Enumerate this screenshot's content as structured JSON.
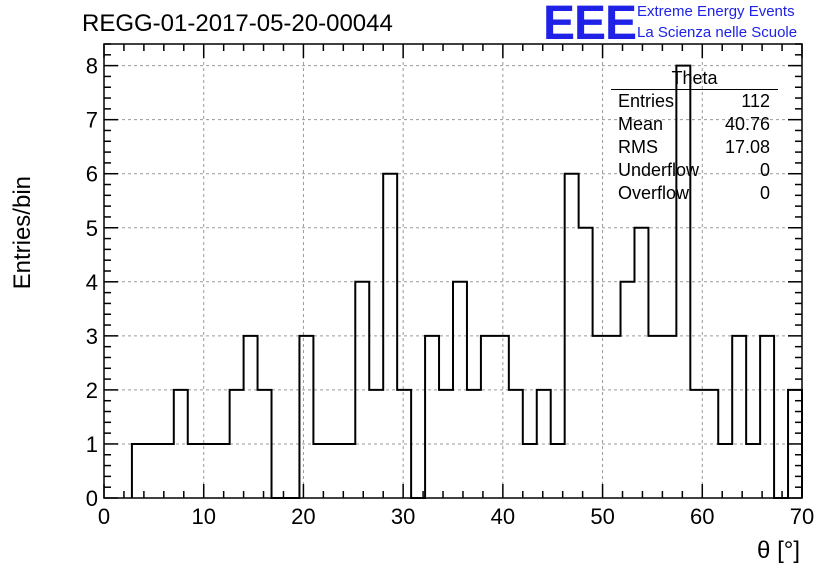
{
  "title": "REGG-01-2017-05-20-00044",
  "logo": {
    "text": "EEE",
    "line1": "Extreme Energy Events",
    "line2": "La Scienza nelle Scuole",
    "color": "#1f22e6"
  },
  "stats_box": {
    "name": "Theta",
    "rows": [
      {
        "label": "Entries",
        "value": "112"
      },
      {
        "label": "Mean",
        "value": "40.76"
      },
      {
        "label": "RMS",
        "value": "17.08"
      },
      {
        "label": "Underflow",
        "value": "0"
      },
      {
        "label": "Overflow",
        "value": "0"
      }
    ]
  },
  "chart_data": {
    "type": "bar",
    "histogram_style": "step",
    "xlabel": "θ [°]",
    "ylabel": "Entries/bin",
    "xlim": [
      0,
      70
    ],
    "ylim": [
      0,
      8.4
    ],
    "x_ticks": [
      0,
      10,
      20,
      30,
      40,
      50,
      60,
      70
    ],
    "y_ticks": [
      0,
      1,
      2,
      3,
      4,
      5,
      6,
      7,
      8
    ],
    "grid": true,
    "bin_width": 1.4,
    "bin_edges_start": 2.8,
    "values": [
      1,
      1,
      1,
      2,
      1,
      1,
      1,
      2,
      3,
      2,
      0,
      0,
      3,
      1,
      1,
      1,
      4,
      2,
      6,
      2,
      0,
      3,
      2,
      4,
      2,
      3,
      3,
      2,
      1,
      2,
      1,
      6,
      5,
      3,
      3,
      4,
      5,
      3,
      3,
      8,
      2,
      2,
      1,
      3,
      1,
      3,
      0,
      2
    ],
    "line_color": "#000000"
  }
}
